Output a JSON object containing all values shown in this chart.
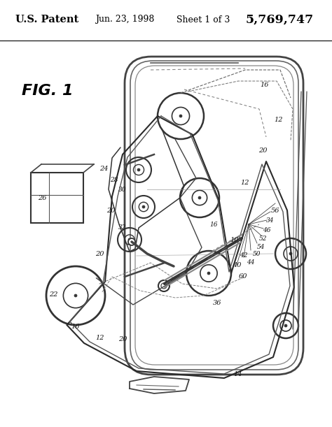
{
  "bg": "#ffffff",
  "lc": "#1a1a1a",
  "header_left": "U.S. Patent",
  "header_mid": "Jun. 23, 1998",
  "header_sheet": "Sheet 1 of 3",
  "header_patent": "5,769,747",
  "fig_label": "FIG. 1",
  "figsize": [
    4.74,
    6.11
  ],
  "dpi": 100
}
